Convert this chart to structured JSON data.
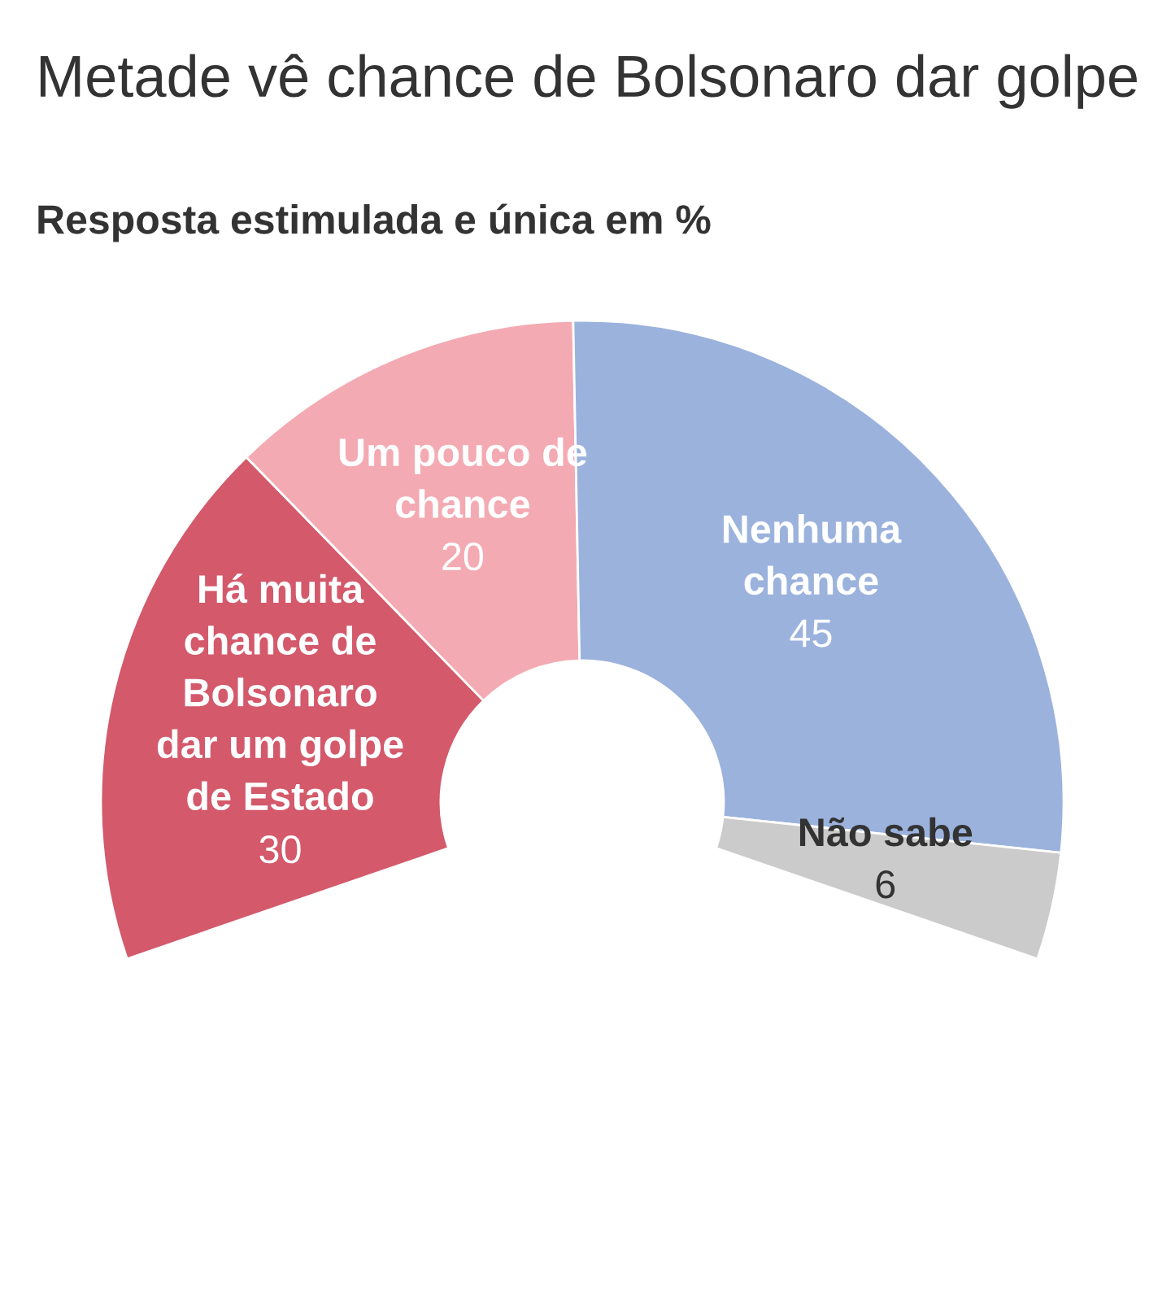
{
  "chart_data": {
    "type": "donut",
    "title": "Metade vê chance de Bolsonaro dar golpe",
    "subtitle": "Resposta estimulada e única em %",
    "categories": [
      "Há muita\nchance de\nBolsonaro\ndar um golpe\nde Estado",
      "Um pouco de\nchance",
      "Nenhuma\nchance",
      "Não sabe"
    ],
    "values": [
      30,
      20,
      45,
      6
    ],
    "colors": [
      "#d3596b",
      "#f4aab2",
      "#9bb2dd",
      "#cbcbcb"
    ],
    "data_labels": true
  }
}
